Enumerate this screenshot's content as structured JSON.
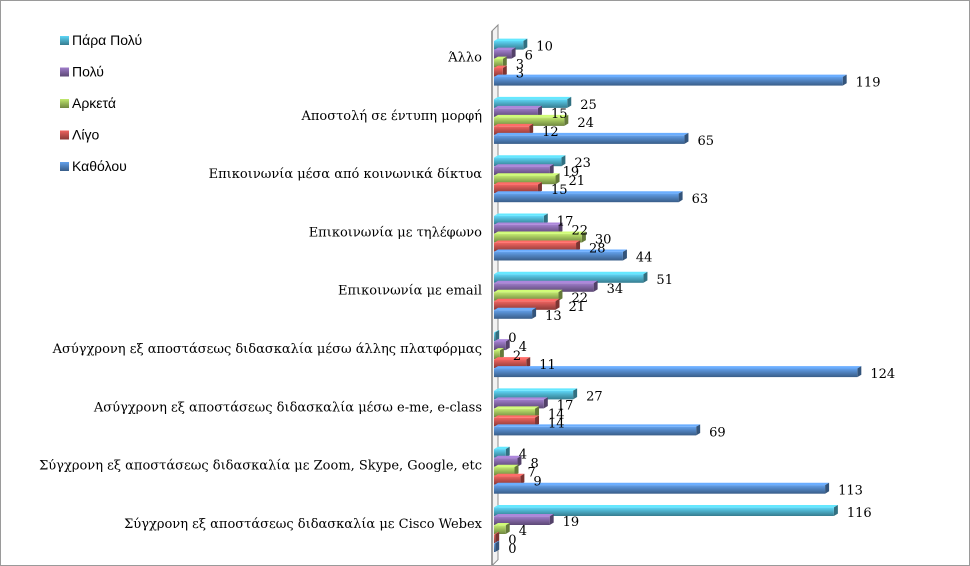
{
  "chart_data": {
    "type": "bar",
    "orientation": "horizontal",
    "categories": [
      "Άλλο",
      "Αποστολή σε έντυπη μορφή",
      "Επικοινωνία μέσα από κοινωνικά δίκτυα",
      "Επικοινωνία με τηλέφωνο",
      "Επικοινωνία με email",
      "Ασύγχρονη εξ αποστάσεως διδασκαλία μέσω άλλης πλατφόρμας",
      "Ασύγχρονη εξ αποστάσεως διδασκαλία μέσω e-me, e-class",
      "Σύγχρονη εξ αποστάσεως διδασκαλία με Zoom, Skype, Google, etc",
      "Σύγχρονη εξ αποστάσεως διδασκαλία με Cisco Webex"
    ],
    "series": [
      {
        "name": "Πάρα Πολύ",
        "color": "#4bacc6",
        "values": [
          10,
          25,
          23,
          17,
          51,
          0,
          27,
          4,
          116
        ]
      },
      {
        "name": "Πολύ",
        "color": "#8064a2",
        "values": [
          6,
          15,
          19,
          22,
          34,
          4,
          17,
          8,
          19
        ]
      },
      {
        "name": "Αρκετά",
        "color": "#9bbb59",
        "values": [
          3,
          24,
          21,
          30,
          22,
          2,
          14,
          7,
          4
        ]
      },
      {
        "name": "Λίγο",
        "color": "#c0504d",
        "values": [
          3,
          12,
          15,
          28,
          21,
          11,
          14,
          9,
          0
        ]
      },
      {
        "name": "Καθόλου",
        "color": "#4f81bd",
        "values": [
          119,
          65,
          63,
          44,
          13,
          124,
          69,
          113,
          0
        ]
      }
    ],
    "legend_position": "top-left",
    "title": "",
    "xlabel": "",
    "ylabel": "",
    "grid": false
  }
}
